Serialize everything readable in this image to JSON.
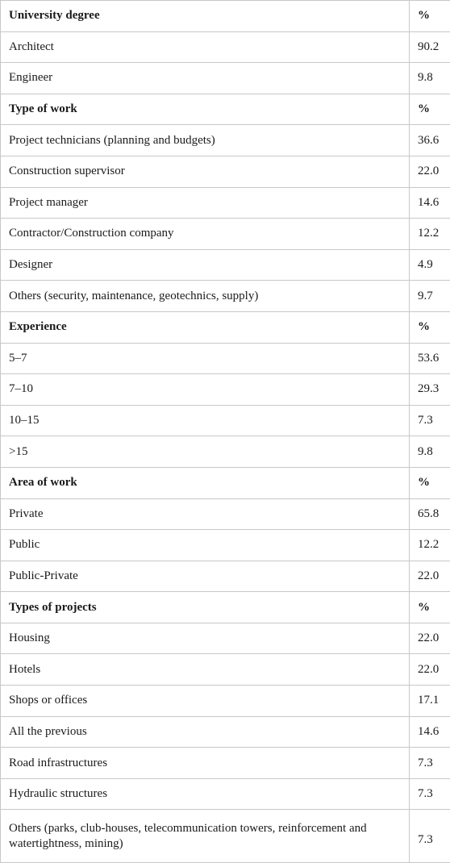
{
  "rows": [
    {
      "label": "University degree",
      "value": "%",
      "header": true
    },
    {
      "label": "Architect",
      "value": "90.2"
    },
    {
      "label": "Engineer",
      "value": "9.8"
    },
    {
      "label": "Type of work",
      "value": "%",
      "header": true
    },
    {
      "label": "Project technicians (planning and budgets)",
      "value": "36.6"
    },
    {
      "label": "Construction supervisor",
      "value": "22.0"
    },
    {
      "label": "Project manager",
      "value": "14.6"
    },
    {
      "label": "Contractor/Construction company",
      "value": "12.2"
    },
    {
      "label": "Designer",
      "value": "4.9"
    },
    {
      "label": "Others (security, maintenance, geotechnics, supply)",
      "value": "9.7"
    },
    {
      "label": "Experience",
      "value": "%",
      "header": true
    },
    {
      "label": "5–7",
      "value": "53.6"
    },
    {
      "label": "7–10",
      "value": "29.3"
    },
    {
      "label": "10–15",
      "value": "7.3"
    },
    {
      "label": ">15",
      "value": "9.8"
    },
    {
      "label": "Area of work",
      "value": "%",
      "header": true
    },
    {
      "label": "Private",
      "value": "65.8"
    },
    {
      "label": "Public",
      "value": "12.2"
    },
    {
      "label": "Public-Private",
      "value": "22.0"
    },
    {
      "label": "Types of projects",
      "value": "%",
      "header": true
    },
    {
      "label": "Housing",
      "value": "22.0"
    },
    {
      "label": "Hotels",
      "value": "22.0"
    },
    {
      "label": "Shops or offices",
      "value": "17.1"
    },
    {
      "label": "All the previous",
      "value": "14.6"
    },
    {
      "label": "Road infrastructures",
      "value": "7.3"
    },
    {
      "label": "Hydraulic structures",
      "value": "7.3"
    },
    {
      "label": "Others (parks, club-houses, telecommunication towers, reinforcement and watertightness, mining)",
      "value": "7.3",
      "tall": true
    }
  ]
}
